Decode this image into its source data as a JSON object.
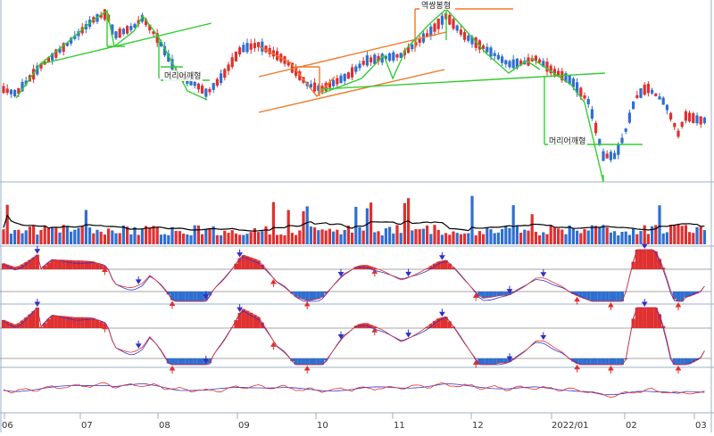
{
  "chart_data": {
    "type": "candlestick",
    "x_axis_labels": [
      "06",
      "07",
      "08",
      "09",
      "10",
      "11",
      "12",
      "2022/01",
      "02",
      "03"
    ],
    "pattern_annotations": [
      "머리어깨형",
      "역쌍봉형",
      "머리어깨형"
    ],
    "price_panel": {
      "seed": 42,
      "up_color": "#e03030",
      "down_color": "#2f6fd1"
    },
    "volume_panel": {
      "moving_average_color": "#000000"
    },
    "oscillator_panels": [
      {
        "name": "",
        "line_colors": [
          "#e03030",
          "#3333cc"
        ],
        "fill_pos": "#e03030",
        "fill_neg": "#2f6fd1"
      },
      {
        "name": "",
        "line_colors": [
          "#e03030",
          "#3333cc"
        ],
        "fill_pos": "#e03030",
        "fill_neg": "#2f6fd1"
      },
      {
        "name": "",
        "line_colors": [
          "#e03030",
          "#3333cc"
        ]
      }
    ],
    "trendline_colors": {
      "green": "#33cc33",
      "orange": "#f07828"
    }
  }
}
